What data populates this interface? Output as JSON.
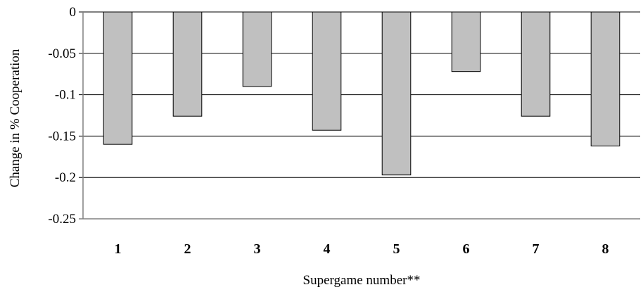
{
  "chart_data": {
    "type": "bar",
    "title": "",
    "xlabel": "Supergame number**",
    "ylabel": "Change in % Cooperation",
    "categories": [
      "1",
      "2",
      "3",
      "4",
      "5",
      "6",
      "7",
      "8"
    ],
    "values": [
      -0.16,
      -0.126,
      -0.09,
      -0.143,
      -0.197,
      -0.072,
      -0.126,
      -0.162
    ],
    "ylim": [
      -0.25,
      0
    ],
    "yticks": [
      "0",
      "-0.05",
      "-0.1",
      "-0.15",
      "-0.2",
      "-0.25"
    ],
    "grid": true,
    "legend": "none",
    "colors": {
      "bar_fill": "#c0c0c0",
      "bar_stroke": "#000000",
      "grid": "#000000"
    }
  }
}
